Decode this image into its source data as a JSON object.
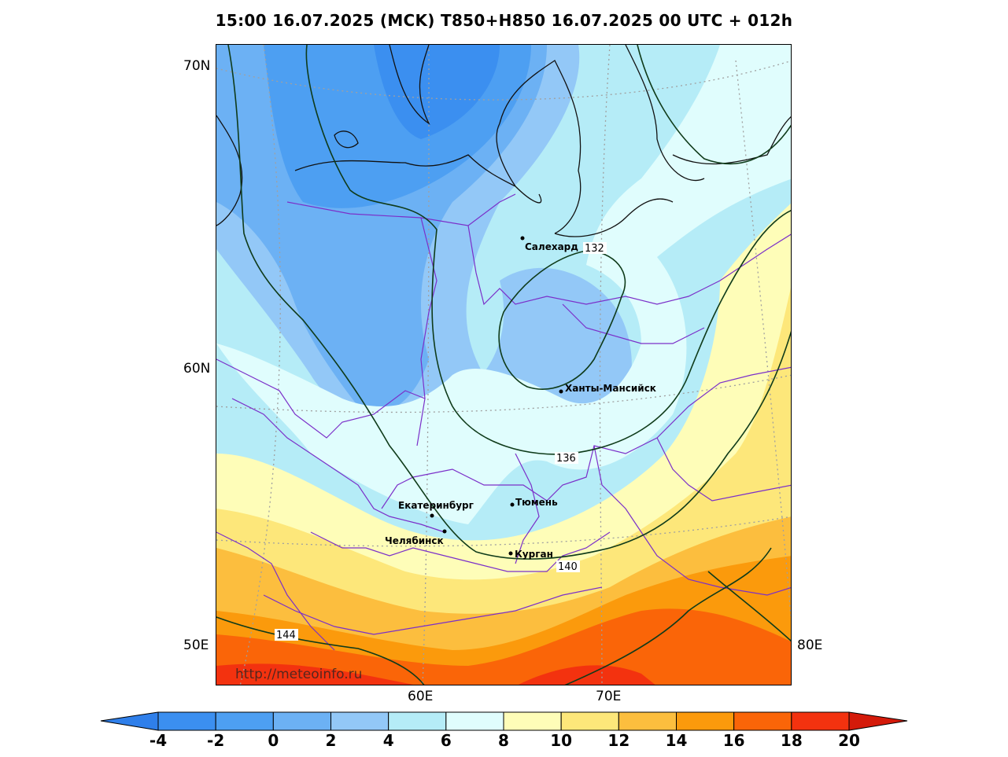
{
  "title": "15:00 16.07.2025 (MCK) T850+H850 16.07.2025 00 UTC + 012h",
  "axes": {
    "lat_labels": [
      "70N",
      "60N",
      "50E"
    ],
    "lon_labels": [
      "60E",
      "70E",
      "80E"
    ]
  },
  "cities": [
    {
      "name": "Салехард"
    },
    {
      "name": "Ханты-Мансийск"
    },
    {
      "name": "Екатеринбург"
    },
    {
      "name": "Тюмень"
    },
    {
      "name": "Челябинск"
    },
    {
      "name": "Курган"
    }
  ],
  "contours": {
    "label_132": "132",
    "label_136": "136",
    "label_140": "140",
    "label_144": "144"
  },
  "watermark": "http://meteoinfo.ru",
  "colorbar": {
    "ticks": [
      "-4",
      "-2",
      "0",
      "2",
      "4",
      "6",
      "8",
      "10",
      "12",
      "14",
      "16",
      "18",
      "20"
    ],
    "colors": [
      "#3b8ff0",
      "#4d9ff2",
      "#6cb1f4",
      "#93c8f7",
      "#b5ecf7",
      "#e0fdfd",
      "#fefdb8",
      "#fde77a",
      "#fcbe3e",
      "#fb9a0c",
      "#fa6508",
      "#f3320f"
    ],
    "low_extend_color": "#2f7fea",
    "high_extend_color": "#d41a0a"
  },
  "colors": {
    "border_purple": "#7b2fc9",
    "coast": "#000000",
    "contour": "#0f3b1a",
    "graticule": "#a0a0a0"
  }
}
